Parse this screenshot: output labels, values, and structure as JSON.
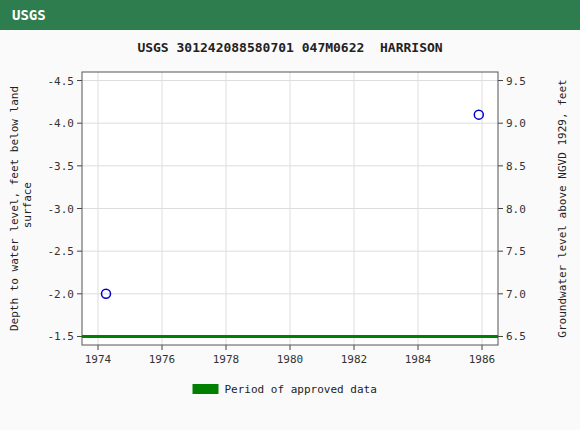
{
  "chart_data": {
    "type": "scatter",
    "title": "USGS 301242088580701 047M0622  HARRISON",
    "annotations": [
      "USGS"
    ],
    "y_label": "Depth to water level, feet below land\n surface",
    "y2_label": "Groundwater level above NGVD 1929, feet",
    "xlim": [
      1973.5,
      1986.5
    ],
    "xticks": [
      1974,
      1976,
      1978,
      1980,
      1982,
      1984,
      1986
    ],
    "ylim": [
      -1.4,
      -4.6
    ],
    "yticks": [
      -4.5,
      {
        "value": -4.0,
        "label": "-4.0"
      },
      -3.5,
      {
        "value": -3.0,
        "label": "-3.0"
      },
      -2.5,
      {
        "value": -2.0,
        "label": "-2.0"
      },
      -1.5
    ],
    "y2lim": [
      6.4,
      9.6
    ],
    "y2ticks": [
      9.5,
      {
        "value": 9.0,
        "label": "9.0"
      },
      8.5,
      {
        "value": 8.0,
        "label": "8.0"
      },
      7.5,
      {
        "value": 7.0,
        "label": "7.0"
      },
      6.5
    ],
    "grid": true,
    "legend": "bottom",
    "series": [
      {
        "type": "scatter",
        "marker": "circle",
        "color": "#0000cc",
        "x": [
          1974.25,
          1985.9
        ],
        "values": [
          -2.0,
          -4.1
        ]
      },
      {
        "type": "line",
        "name": "Period of approved data",
        "color": "#008000",
        "x": [
          1973.5,
          1986.5
        ],
        "values": [
          -1.5,
          -1.5
        ]
      }
    ]
  }
}
